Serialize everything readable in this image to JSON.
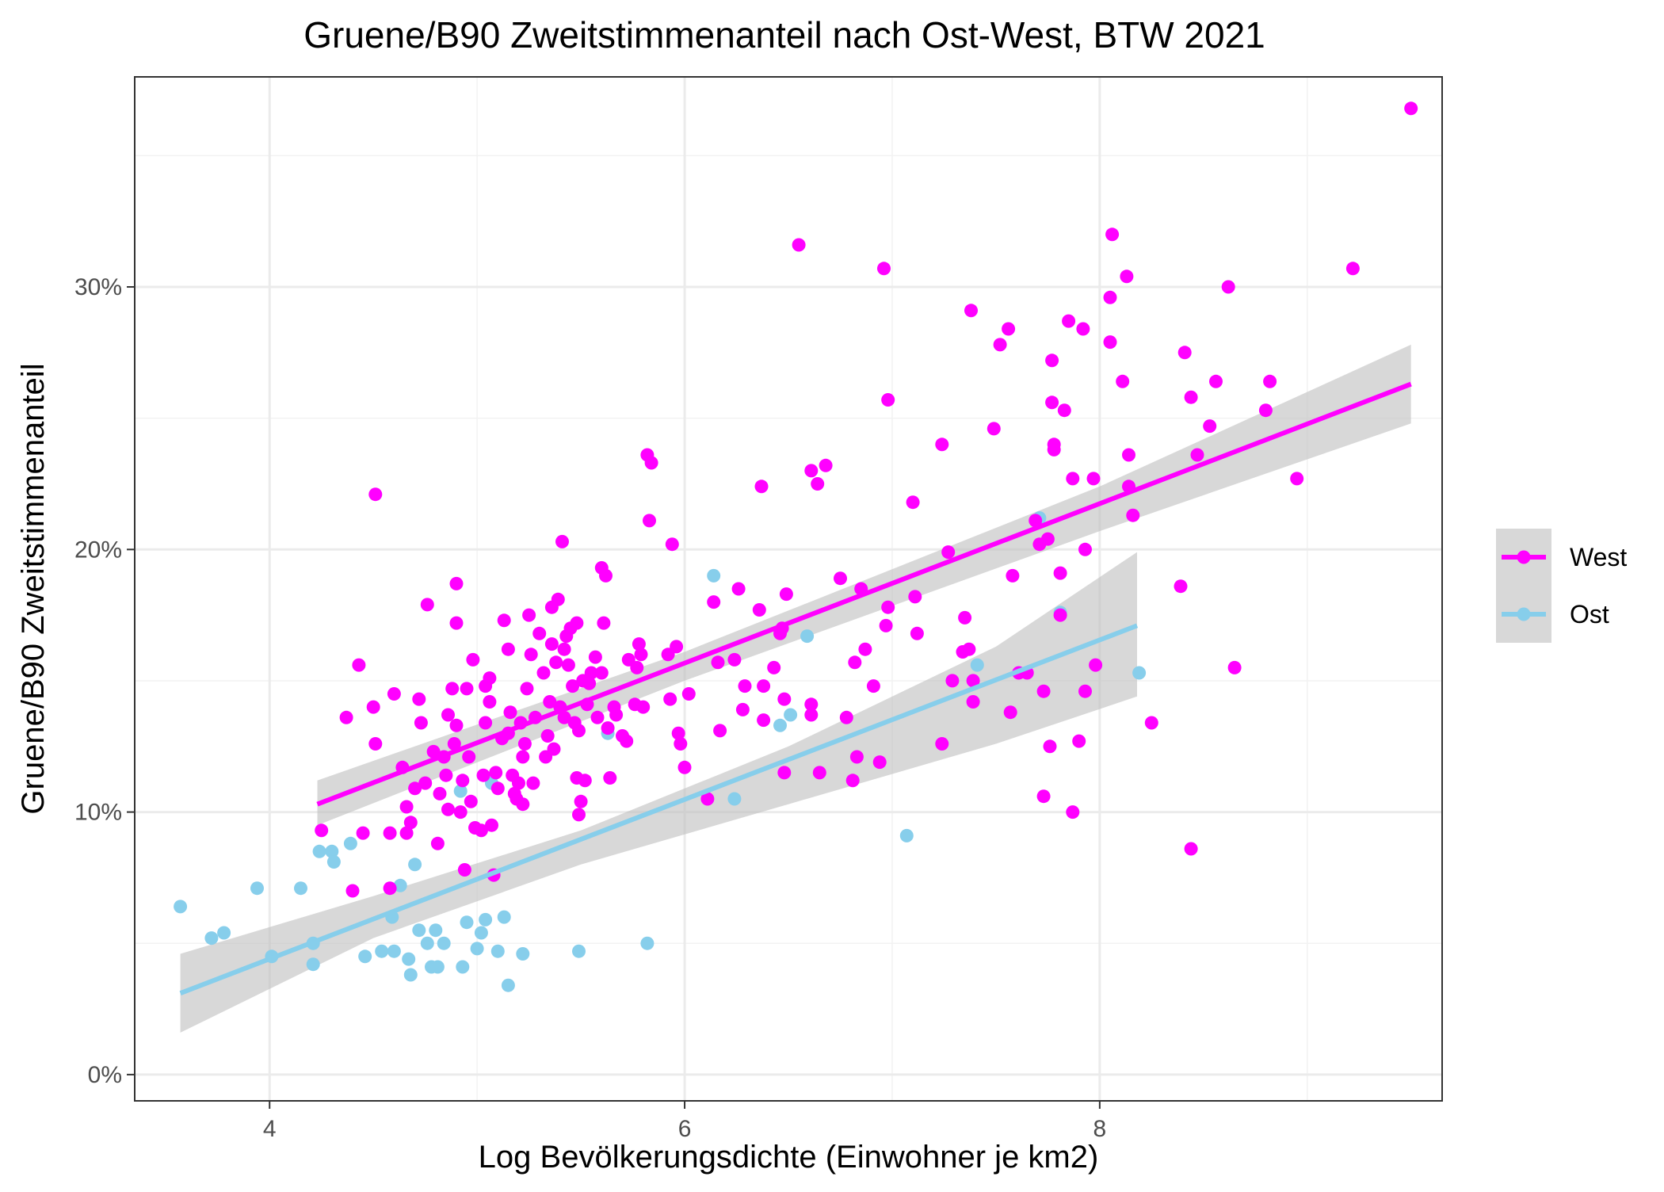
{
  "chart_data": {
    "type": "scatter",
    "title": "Gruene/B90 Zweitstimmenanteil nach Ost-West, BTW 2021",
    "xlabel": "Log Bevölkerungsdichte (Einwohner je km2)",
    "ylabel": "Gruene/B90 Zweitstimmenanteil",
    "xlim": [
      3.35,
      9.65
    ],
    "ylim": [
      -0.01,
      0.38
    ],
    "x_ticks": [
      4,
      6,
      8
    ],
    "x_tick_labels": [
      "4",
      "6",
      "8"
    ],
    "y_ticks": [
      0,
      0.1,
      0.2,
      0.3
    ],
    "y_tick_labels": [
      "0%",
      "10%",
      "20%",
      "30%"
    ],
    "grid": true,
    "legend_position": "right",
    "colors": {
      "West": "#FF00FF",
      "Ost": "#87CEEB",
      "band": "#BEBEBE"
    },
    "series": [
      {
        "name": "West",
        "color": "#FF00FF",
        "fit": {
          "x": [
            4.23,
            9.5
          ],
          "y": [
            0.103,
            0.263
          ]
        },
        "ci": {
          "x": [
            4.23,
            6.0,
            8.0,
            9.5
          ],
          "lower": [
            0.095,
            0.15,
            0.207,
            0.248
          ],
          "upper": [
            0.112,
            0.161,
            0.224,
            0.278
          ]
        },
        "points": [
          [
            4.51,
            0.221
          ],
          [
            4.43,
            0.156
          ],
          [
            4.37,
            0.136
          ],
          [
            4.5,
            0.14
          ],
          [
            4.51,
            0.126
          ],
          [
            4.25,
            0.093
          ],
          [
            4.45,
            0.092
          ],
          [
            4.58,
            0.092
          ],
          [
            4.6,
            0.145
          ],
          [
            4.4,
            0.07
          ],
          [
            4.58,
            0.071
          ],
          [
            4.64,
            0.117
          ],
          [
            4.66,
            0.102
          ],
          [
            4.66,
            0.092
          ],
          [
            4.68,
            0.096
          ],
          [
            4.7,
            0.109
          ],
          [
            4.72,
            0.143
          ],
          [
            4.73,
            0.134
          ],
          [
            4.75,
            0.111
          ],
          [
            4.76,
            0.179
          ],
          [
            4.79,
            0.123
          ],
          [
            4.81,
            0.088
          ],
          [
            4.82,
            0.107
          ],
          [
            4.84,
            0.121
          ],
          [
            4.85,
            0.114
          ],
          [
            4.86,
            0.137
          ],
          [
            4.86,
            0.101
          ],
          [
            4.88,
            0.147
          ],
          [
            4.89,
            0.126
          ],
          [
            4.9,
            0.133
          ],
          [
            4.9,
            0.172
          ],
          [
            4.9,
            0.187
          ],
          [
            4.92,
            0.1
          ],
          [
            4.93,
            0.112
          ],
          [
            4.94,
            0.078
          ],
          [
            4.95,
            0.147
          ],
          [
            4.96,
            0.121
          ],
          [
            4.97,
            0.104
          ],
          [
            4.98,
            0.158
          ],
          [
            4.99,
            0.094
          ],
          [
            5.02,
            0.093
          ],
          [
            5.03,
            0.114
          ],
          [
            5.04,
            0.134
          ],
          [
            5.04,
            0.148
          ],
          [
            5.06,
            0.142
          ],
          [
            5.06,
            0.151
          ],
          [
            5.07,
            0.095
          ],
          [
            5.08,
            0.076
          ],
          [
            5.09,
            0.115
          ],
          [
            5.1,
            0.109
          ],
          [
            5.12,
            0.128
          ],
          [
            5.13,
            0.173
          ],
          [
            5.15,
            0.162
          ],
          [
            5.15,
            0.13
          ],
          [
            5.16,
            0.138
          ],
          [
            5.17,
            0.114
          ],
          [
            5.18,
            0.107
          ],
          [
            5.19,
            0.105
          ],
          [
            5.2,
            0.111
          ],
          [
            5.21,
            0.134
          ],
          [
            5.22,
            0.121
          ],
          [
            5.22,
            0.103
          ],
          [
            5.23,
            0.126
          ],
          [
            5.24,
            0.147
          ],
          [
            5.25,
            0.175
          ],
          [
            5.26,
            0.16
          ],
          [
            5.27,
            0.111
          ],
          [
            5.28,
            0.136
          ],
          [
            5.3,
            0.168
          ],
          [
            5.32,
            0.153
          ],
          [
            5.33,
            0.121
          ],
          [
            5.34,
            0.129
          ],
          [
            5.35,
            0.142
          ],
          [
            5.36,
            0.178
          ],
          [
            5.36,
            0.164
          ],
          [
            5.37,
            0.124
          ],
          [
            5.38,
            0.157
          ],
          [
            5.39,
            0.181
          ],
          [
            5.4,
            0.14
          ],
          [
            5.41,
            0.203
          ],
          [
            5.42,
            0.136
          ],
          [
            5.42,
            0.162
          ],
          [
            5.43,
            0.167
          ],
          [
            5.44,
            0.156
          ],
          [
            5.45,
            0.17
          ],
          [
            5.46,
            0.148
          ],
          [
            5.47,
            0.134
          ],
          [
            5.48,
            0.172
          ],
          [
            5.48,
            0.113
          ],
          [
            5.49,
            0.131
          ],
          [
            5.49,
            0.099
          ],
          [
            5.5,
            0.104
          ],
          [
            5.51,
            0.15
          ],
          [
            5.52,
            0.112
          ],
          [
            5.53,
            0.141
          ],
          [
            5.54,
            0.149
          ],
          [
            5.55,
            0.153
          ],
          [
            5.57,
            0.159
          ],
          [
            5.58,
            0.136
          ],
          [
            5.6,
            0.153
          ],
          [
            5.6,
            0.193
          ],
          [
            5.61,
            0.172
          ],
          [
            5.62,
            0.19
          ],
          [
            5.63,
            0.132
          ],
          [
            5.64,
            0.113
          ],
          [
            5.66,
            0.14
          ],
          [
            5.67,
            0.137
          ],
          [
            5.7,
            0.129
          ],
          [
            5.72,
            0.127
          ],
          [
            5.73,
            0.158
          ],
          [
            5.76,
            0.141
          ],
          [
            5.77,
            0.155
          ],
          [
            5.78,
            0.164
          ],
          [
            5.79,
            0.16
          ],
          [
            5.8,
            0.14
          ],
          [
            5.82,
            0.236
          ],
          [
            5.83,
            0.211
          ],
          [
            5.84,
            0.233
          ],
          [
            5.92,
            0.16
          ],
          [
            5.93,
            0.143
          ],
          [
            5.94,
            0.202
          ],
          [
            5.96,
            0.163
          ],
          [
            5.97,
            0.13
          ],
          [
            5.98,
            0.126
          ],
          [
            6.0,
            0.117
          ],
          [
            6.02,
            0.145
          ],
          [
            6.11,
            0.105
          ],
          [
            6.14,
            0.18
          ],
          [
            6.16,
            0.157
          ],
          [
            6.17,
            0.131
          ],
          [
            6.24,
            0.158
          ],
          [
            6.26,
            0.185
          ],
          [
            6.29,
            0.148
          ],
          [
            6.28,
            0.139
          ],
          [
            6.36,
            0.177
          ],
          [
            6.37,
            0.224
          ],
          [
            6.38,
            0.148
          ],
          [
            6.38,
            0.135
          ],
          [
            6.43,
            0.155
          ],
          [
            6.46,
            0.168
          ],
          [
            6.47,
            0.17
          ],
          [
            6.48,
            0.143
          ],
          [
            6.48,
            0.115
          ],
          [
            6.49,
            0.183
          ],
          [
            6.55,
            0.316
          ],
          [
            6.61,
            0.23
          ],
          [
            6.61,
            0.141
          ],
          [
            6.61,
            0.137
          ],
          [
            6.64,
            0.225
          ],
          [
            6.65,
            0.115
          ],
          [
            6.68,
            0.232
          ],
          [
            6.75,
            0.189
          ],
          [
            6.78,
            0.136
          ],
          [
            6.81,
            0.112
          ],
          [
            6.82,
            0.157
          ],
          [
            6.83,
            0.121
          ],
          [
            6.85,
            0.185
          ],
          [
            6.87,
            0.162
          ],
          [
            6.91,
            0.148
          ],
          [
            6.94,
            0.119
          ],
          [
            6.96,
            0.307
          ],
          [
            6.97,
            0.171
          ],
          [
            6.98,
            0.257
          ],
          [
            6.98,
            0.178
          ],
          [
            7.1,
            0.218
          ],
          [
            7.11,
            0.182
          ],
          [
            7.12,
            0.168
          ],
          [
            7.24,
            0.24
          ],
          [
            7.24,
            0.126
          ],
          [
            7.27,
            0.199
          ],
          [
            7.29,
            0.15
          ],
          [
            7.34,
            0.161
          ],
          [
            7.35,
            0.174
          ],
          [
            7.37,
            0.162
          ],
          [
            7.38,
            0.291
          ],
          [
            7.39,
            0.142
          ],
          [
            7.39,
            0.15
          ],
          [
            7.49,
            0.246
          ],
          [
            7.52,
            0.278
          ],
          [
            7.56,
            0.284
          ],
          [
            7.57,
            0.138
          ],
          [
            7.58,
            0.19
          ],
          [
            7.61,
            0.153
          ],
          [
            7.65,
            0.153
          ],
          [
            7.69,
            0.211
          ],
          [
            7.71,
            0.202
          ],
          [
            7.73,
            0.106
          ],
          [
            7.73,
            0.146
          ],
          [
            7.75,
            0.204
          ],
          [
            7.76,
            0.125
          ],
          [
            7.77,
            0.272
          ],
          [
            7.77,
            0.256
          ],
          [
            7.78,
            0.24
          ],
          [
            7.78,
            0.238
          ],
          [
            7.81,
            0.175
          ],
          [
            7.81,
            0.191
          ],
          [
            7.83,
            0.253
          ],
          [
            7.85,
            0.287
          ],
          [
            7.87,
            0.227
          ],
          [
            7.87,
            0.1
          ],
          [
            7.9,
            0.127
          ],
          [
            7.92,
            0.284
          ],
          [
            7.93,
            0.2
          ],
          [
            7.93,
            0.146
          ],
          [
            7.97,
            0.227
          ],
          [
            7.98,
            0.156
          ],
          [
            8.05,
            0.296
          ],
          [
            8.05,
            0.279
          ],
          [
            8.06,
            0.32
          ],
          [
            8.11,
            0.264
          ],
          [
            8.13,
            0.304
          ],
          [
            8.14,
            0.224
          ],
          [
            8.14,
            0.236
          ],
          [
            8.16,
            0.213
          ],
          [
            8.25,
            0.134
          ],
          [
            8.39,
            0.186
          ],
          [
            8.41,
            0.275
          ],
          [
            8.44,
            0.258
          ],
          [
            8.44,
            0.086
          ],
          [
            8.47,
            0.236
          ],
          [
            8.53,
            0.247
          ],
          [
            8.56,
            0.264
          ],
          [
            8.62,
            0.3
          ],
          [
            8.65,
            0.155
          ],
          [
            8.8,
            0.253
          ],
          [
            8.82,
            0.264
          ],
          [
            8.95,
            0.227
          ],
          [
            9.22,
            0.307
          ],
          [
            9.5,
            0.368
          ]
        ]
      },
      {
        "name": "Ost",
        "color": "#87CEEB",
        "fit": {
          "x": [
            3.57,
            8.18
          ],
          "y": [
            0.031,
            0.171
          ]
        },
        "ci": {
          "x": [
            3.57,
            4.5,
            5.5,
            6.5,
            7.5,
            8.18
          ],
          "lower": [
            0.016,
            0.052,
            0.08,
            0.103,
            0.126,
            0.144
          ],
          "upper": [
            0.046,
            0.068,
            0.093,
            0.125,
            0.163,
            0.199
          ]
        },
        "points": [
          [
            3.57,
            0.064
          ],
          [
            3.72,
            0.052
          ],
          [
            3.78,
            0.054
          ],
          [
            3.94,
            0.071
          ],
          [
            4.01,
            0.045
          ],
          [
            4.15,
            0.071
          ],
          [
            4.21,
            0.05
          ],
          [
            4.21,
            0.042
          ],
          [
            4.24,
            0.085
          ],
          [
            4.3,
            0.085
          ],
          [
            4.31,
            0.081
          ],
          [
            4.39,
            0.088
          ],
          [
            4.46,
            0.045
          ],
          [
            4.54,
            0.047
          ],
          [
            4.59,
            0.06
          ],
          [
            4.6,
            0.047
          ],
          [
            4.63,
            0.072
          ],
          [
            4.67,
            0.044
          ],
          [
            4.68,
            0.038
          ],
          [
            4.7,
            0.08
          ],
          [
            4.72,
            0.055
          ],
          [
            4.76,
            0.05
          ],
          [
            4.78,
            0.041
          ],
          [
            4.8,
            0.055
          ],
          [
            4.81,
            0.041
          ],
          [
            4.84,
            0.05
          ],
          [
            4.92,
            0.108
          ],
          [
            4.93,
            0.041
          ],
          [
            4.95,
            0.058
          ],
          [
            5.0,
            0.048
          ],
          [
            5.02,
            0.054
          ],
          [
            5.04,
            0.059
          ],
          [
            5.07,
            0.111
          ],
          [
            5.1,
            0.047
          ],
          [
            5.13,
            0.06
          ],
          [
            5.15,
            0.034
          ],
          [
            5.22,
            0.046
          ],
          [
            5.49,
            0.047
          ],
          [
            5.63,
            0.13
          ],
          [
            5.82,
            0.05
          ],
          [
            6.14,
            0.19
          ],
          [
            6.24,
            0.105
          ],
          [
            6.46,
            0.133
          ],
          [
            6.51,
            0.137
          ],
          [
            6.59,
            0.167
          ],
          [
            7.07,
            0.091
          ],
          [
            7.41,
            0.156
          ],
          [
            7.71,
            0.212
          ],
          [
            7.81,
            0.176
          ],
          [
            8.19,
            0.153
          ]
        ]
      }
    ]
  }
}
